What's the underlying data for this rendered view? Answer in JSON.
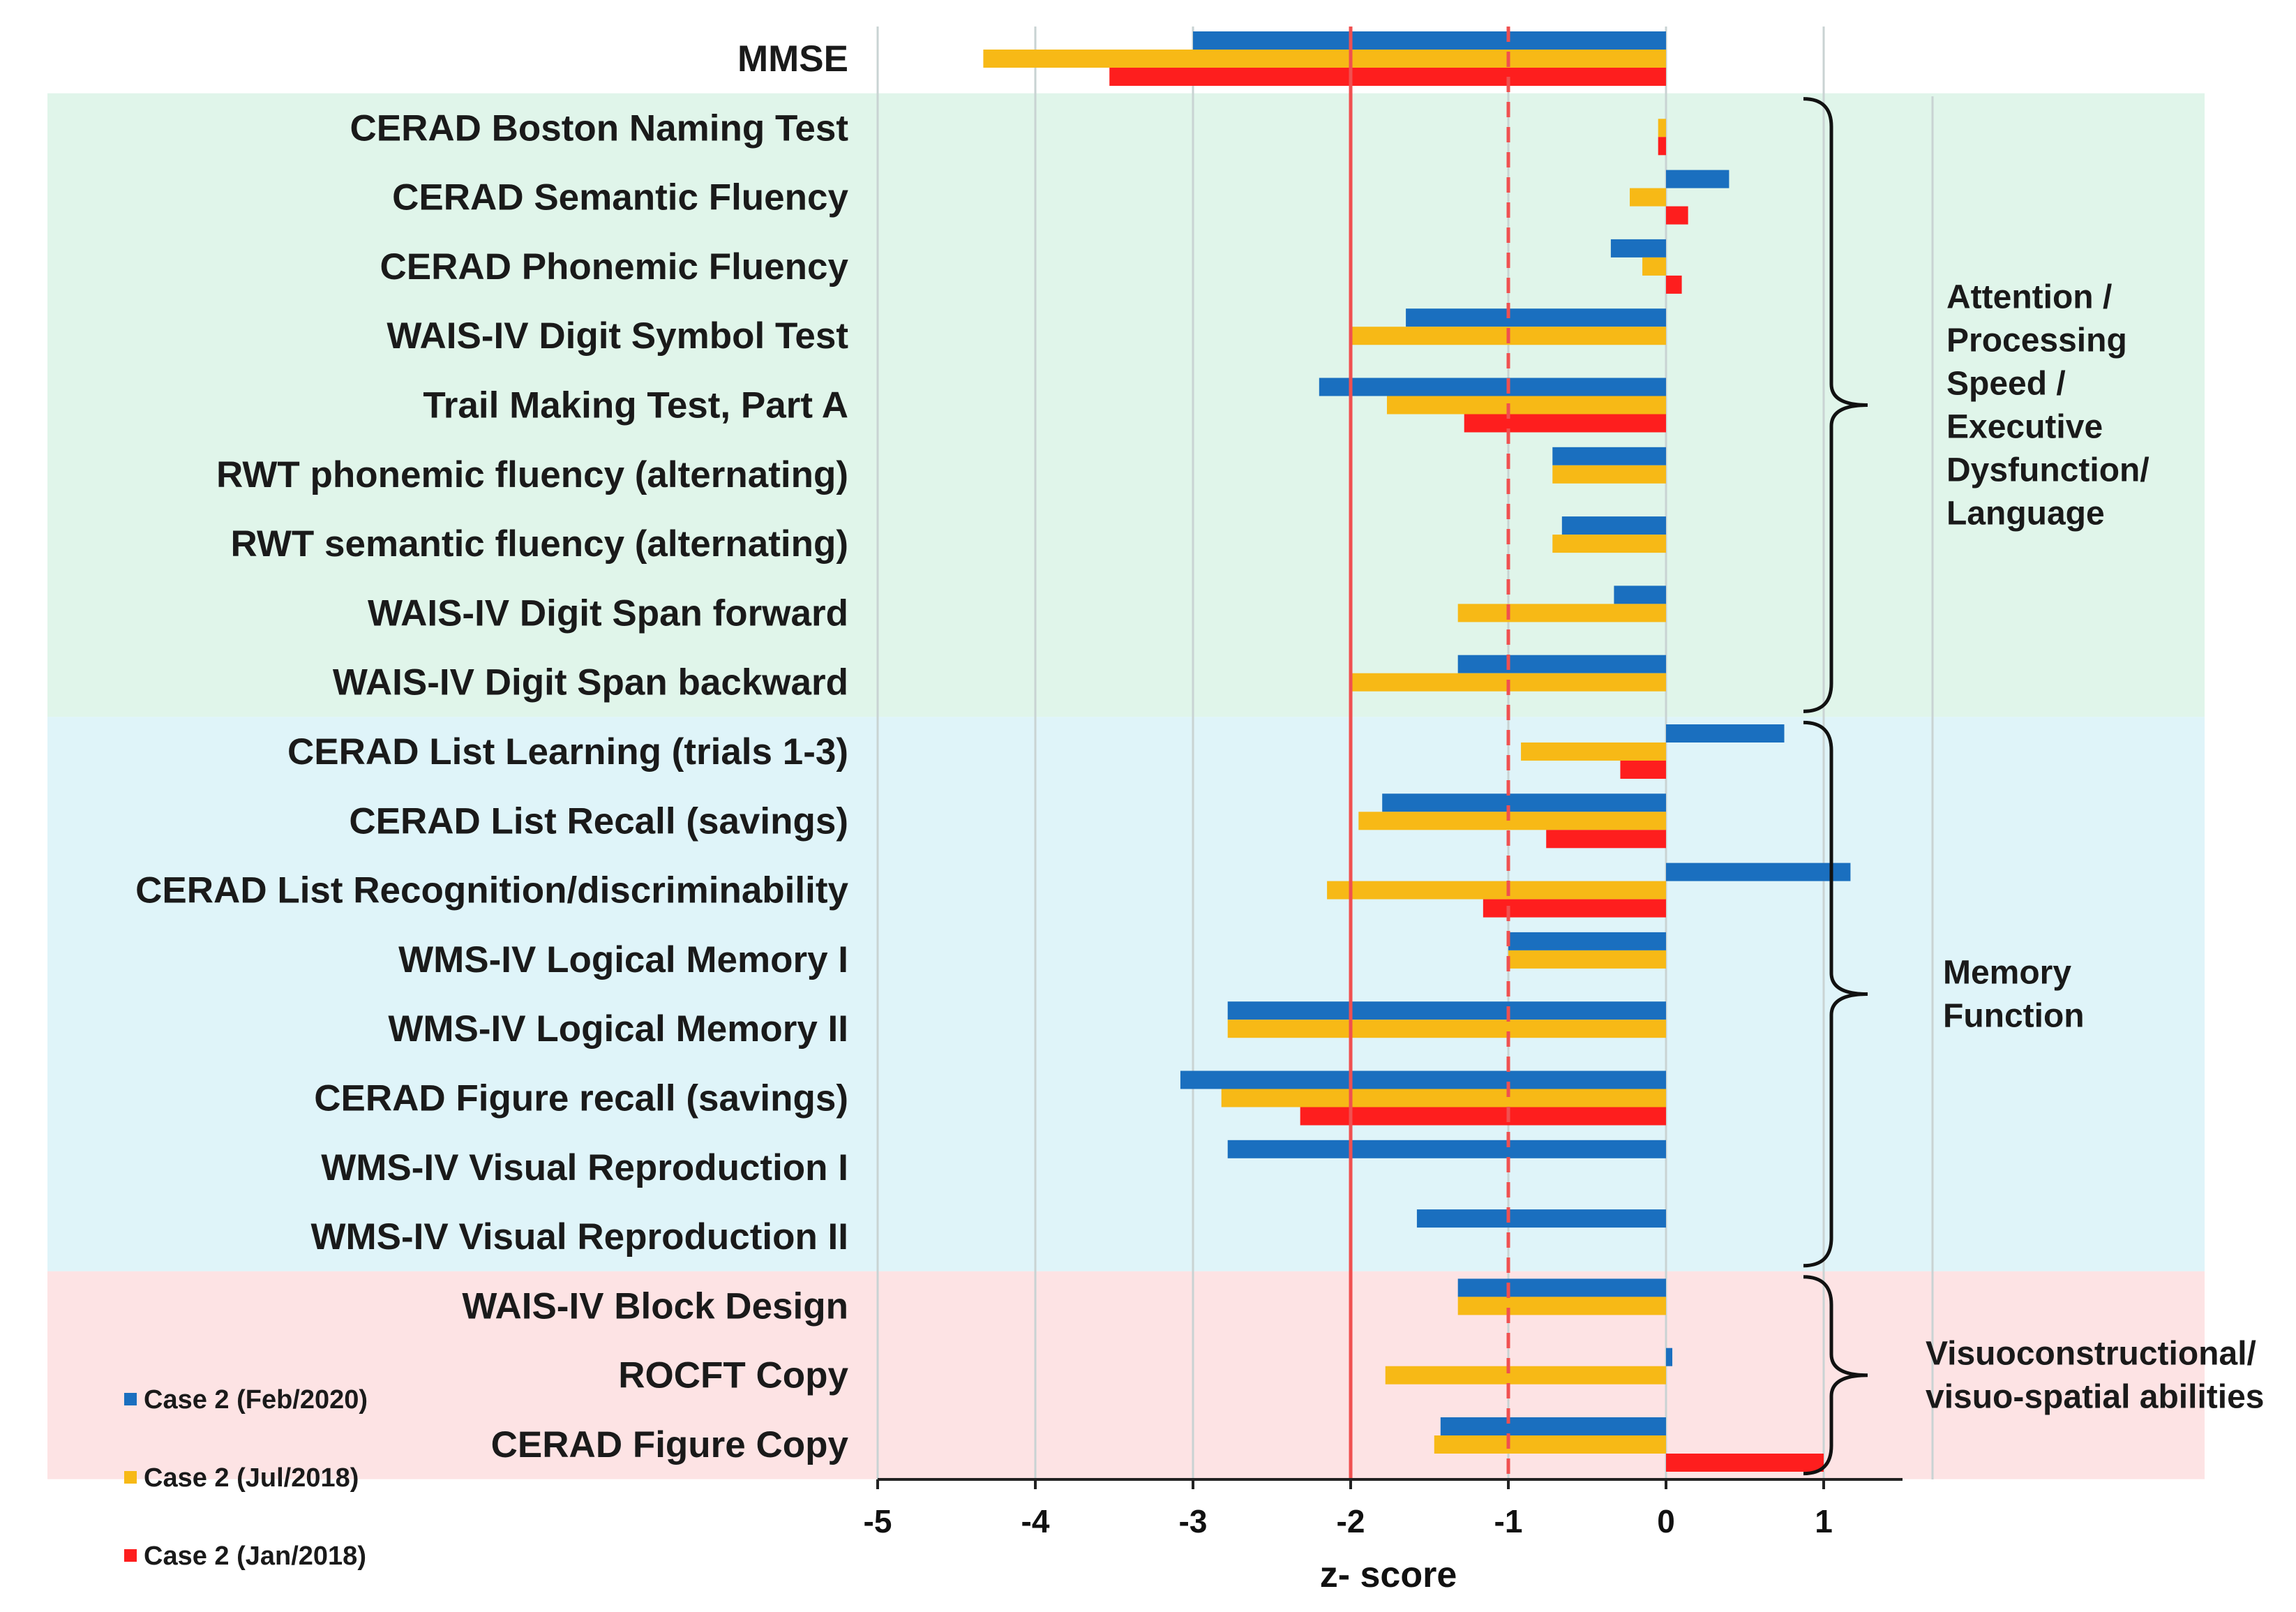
{
  "chart_data": {
    "type": "bar",
    "orientation": "horizontal",
    "xlabel": "z- score",
    "xlim": [
      -5,
      1.5
    ],
    "xticks": [
      -5,
      -4,
      -3,
      -2,
      -1,
      0,
      1
    ],
    "reference_lines": [
      {
        "x": -2,
        "style": "solid",
        "color": "#f05050"
      },
      {
        "x": -1,
        "style": "dashed",
        "color": "#f05050"
      }
    ],
    "categories": [
      "MMSE",
      "CERAD Boston Naming Test",
      "CERAD Semantic Fluency",
      "CERAD Phonemic Fluency",
      "WAIS-IV Digit Symbol Test",
      "Trail Making Test, Part A",
      "RWT phonemic fluency (alternating)",
      "RWT semantic fluency (alternating)",
      "WAIS-IV Digit Span forward",
      "WAIS-IV Digit Span backward",
      "CERAD List Learning (trials 1-3)",
      "CERAD List Recall (savings)",
      "CERAD List Recognition/discriminability",
      "WMS-IV Logical Memory I",
      "WMS-IV Logical Memory II",
      "CERAD Figure recall (savings)",
      "WMS-IV Visual Reproduction I",
      "WMS-IV Visual Reproduction II",
      "WAIS-IV Block Design",
      "ROCFT Copy",
      "CERAD Figure Copy"
    ],
    "series": [
      {
        "name": "Case 2 (Feb/2020)",
        "color": "#1a6fbf",
        "values": [
          -3.0,
          null,
          0.4,
          -0.35,
          -1.65,
          -2.2,
          -0.72,
          -0.66,
          -0.33,
          -1.32,
          0.75,
          -1.8,
          1.17,
          -1.0,
          -2.78,
          -3.08,
          -2.78,
          -1.58,
          -1.32,
          0.04,
          -1.43
        ]
      },
      {
        "name": "Case 2 (Jul/2018)",
        "color": "#f7b916",
        "values": [
          -4.33,
          -0.05,
          -0.23,
          -0.15,
          -2.0,
          -1.77,
          -0.72,
          -0.72,
          -1.32,
          -2.0,
          -0.92,
          -1.95,
          -2.15,
          -1.0,
          -2.78,
          -2.82,
          null,
          null,
          -1.32,
          -1.78,
          -1.47
        ]
      },
      {
        "name": "Case 2 (Jan/2018)",
        "color": "#fe1e1e",
        "values": [
          -3.53,
          -0.05,
          0.14,
          0.1,
          null,
          -1.28,
          null,
          null,
          null,
          null,
          -0.29,
          -0.76,
          -1.16,
          null,
          null,
          -2.32,
          null,
          null,
          null,
          null,
          1.0
        ]
      }
    ],
    "groups": [
      {
        "label_lines": [
          "Attention /",
          "Processing",
          "Speed /",
          "Executive",
          "Dysfunction/",
          "Language"
        ],
        "from": 1,
        "to": 9,
        "color": "#e0f5ea"
      },
      {
        "label_lines": [
          "Memory",
          "Function"
        ],
        "from": 10,
        "to": 17,
        "color": "#dff4f9"
      },
      {
        "label_lines": [
          "Visuoconstructional/",
          "visuo-spatial abilities"
        ],
        "from": 18,
        "to": 20,
        "color": "#fde3e4"
      }
    ],
    "legend": "bottom-left"
  }
}
